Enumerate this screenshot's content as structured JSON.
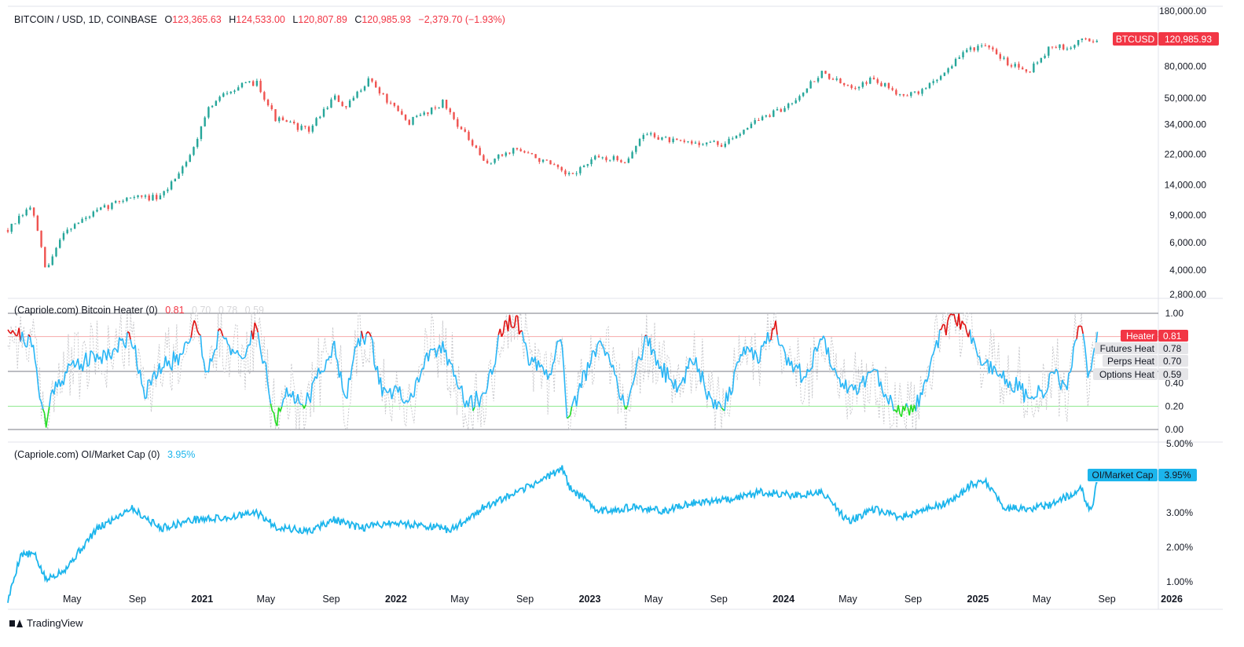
{
  "app": {
    "brand": "TradingView",
    "icon": "tradingview-logo-icon"
  },
  "main_pane": {
    "title_parts": {
      "symbol": "BITCOIN / USD, 1D, COINBASE",
      "open_label": "O",
      "open": "123,365.63",
      "high_label": "H",
      "high": "124,533.00",
      "low_label": "L",
      "low": "120,807.89",
      "close_label": "C",
      "close": "120,985.93",
      "change": "−2,379.70 (−1.93%)"
    },
    "price_tag": {
      "symbol": "BTCUSD",
      "value": "120,985.93"
    }
  },
  "heater_pane": {
    "title": "(Capriole.com) Bitcoin Heater (0)",
    "values": [
      "0.81",
      "0.70",
      "0.78",
      "0.59"
    ],
    "legend": [
      {
        "label": "Heater",
        "value": "0.81"
      },
      {
        "label": "Futures Heat",
        "value": "0.78"
      },
      {
        "label": "Perps Heat",
        "value": "0.70"
      },
      {
        "label": "Options Heat",
        "value": "0.59"
      }
    ]
  },
  "oi_pane": {
    "title": "(Capriole.com) OI/Market Cap (0)",
    "value": "3.95%",
    "price_tag": {
      "label": "OI/Market Cap",
      "value": "3.95%"
    }
  },
  "colors": {
    "up": "#26a69a",
    "down": "#ef5350",
    "heater_line": "#29b6f6",
    "hot": "#e01212",
    "cold": "#22dd22",
    "ghost": "#c8c8cc",
    "oi_line": "#1cb5ec",
    "tag_red": "#f23645"
  },
  "chart_data": [
    {
      "type": "candlestick",
      "title": "BITCOIN / USD, 1D, COINBASE",
      "scale": "log",
      "ylim": [
        2800,
        180000
      ],
      "y_ticks": [
        "180,000.00",
        "80,000.00",
        "50,000.00",
        "34,000.00",
        "22,000.00",
        "14,000.00",
        "9,000.00",
        "6,000.00",
        "4,000.00",
        "2,800.00"
      ],
      "y_tick_values": [
        180000,
        80000,
        50000,
        34000,
        22000,
        14000,
        9000,
        6000,
        4000,
        2800
      ],
      "x_ticks": [
        "May",
        "Sep",
        "2021",
        "May",
        "Sep",
        "2022",
        "May",
        "Sep",
        "2023",
        "May",
        "Sep",
        "2024",
        "May",
        "Sep",
        "2025",
        "May",
        "Sep",
        "2026"
      ],
      "x_tick_dates": [
        "2020-05-01",
        "2020-09-01",
        "2021-01-01",
        "2021-05-01",
        "2021-09-01",
        "2022-01-01",
        "2022-05-01",
        "2022-09-01",
        "2023-01-01",
        "2023-05-01",
        "2023-09-01",
        "2024-01-01",
        "2024-05-01",
        "2024-09-01",
        "2025-01-01",
        "2025-05-01",
        "2025-09-01",
        "2026-01-01"
      ],
      "x_range": [
        "2020-01-01",
        "2026-02-01"
      ],
      "series": [
        {
          "x": [
            "2020-01-01",
            "2020-02-15",
            "2020-03-13",
            "2020-04-15",
            "2020-06-15",
            "2020-08-15",
            "2020-10-15",
            "2020-12-15",
            "2021-01-08",
            "2021-02-21",
            "2021-04-14",
            "2021-05-19",
            "2021-07-20",
            "2021-09-06",
            "2021-09-29",
            "2021-11-10",
            "2021-12-20",
            "2022-01-24",
            "2022-03-30",
            "2022-05-12",
            "2022-06-18",
            "2022-08-14",
            "2022-10-15",
            "2022-11-21",
            "2023-01-15",
            "2023-03-10",
            "2023-04-15",
            "2023-06-15",
            "2023-08-17",
            "2023-09-11",
            "2023-11-01",
            "2023-12-31",
            "2024-03-14",
            "2024-05-01",
            "2024-06-15",
            "2024-08-05",
            "2024-09-06",
            "2024-10-15",
            "2024-12-17",
            "2025-01-20",
            "2025-02-28",
            "2025-04-08",
            "2025-05-22",
            "2025-06-22",
            "2025-07-14",
            "2025-08-02",
            "2025-08-14"
          ],
          "close": [
            7200,
            10300,
            3900,
            7100,
            9400,
            11800,
            11500,
            23500,
            41000,
            57000,
            63500,
            37000,
            31000,
            51000,
            43000,
            67000,
            46000,
            35000,
            47000,
            29000,
            19000,
            24000,
            19100,
            15800,
            21000,
            20000,
            30000,
            26000,
            26000,
            25000,
            35000,
            42500,
            73000,
            58000,
            66000,
            54000,
            53000,
            66000,
            106000,
            104000,
            84000,
            76000,
            110000,
            100000,
            123000,
            113000,
            120986
          ]
        }
      ]
    },
    {
      "type": "line",
      "title": "(Capriole.com) Bitcoin Heater (0)",
      "ylim": [
        0,
        1
      ],
      "y_ticks": [
        "1.00",
        "0.40",
        "0.20",
        "0.00"
      ],
      "y_tick_values": [
        1.0,
        0.4,
        0.2,
        0.0
      ],
      "reference_levels": [
        1.0,
        0.8,
        0.5,
        0.2,
        0.0
      ],
      "series": [
        {
          "name": "Heater",
          "x": [
            "2020-01-01",
            "2020-01-20",
            "2020-02-15",
            "2020-03-13",
            "2020-03-25",
            "2020-05-01",
            "2020-06-15",
            "2020-07-20",
            "2020-08-20",
            "2020-09-15",
            "2020-10-20",
            "2020-11-20",
            "2020-12-20",
            "2021-01-10",
            "2021-02-05",
            "2021-03-15",
            "2021-04-14",
            "2021-05-19",
            "2021-06-10",
            "2021-07-20",
            "2021-08-15",
            "2021-09-06",
            "2021-09-29",
            "2021-10-20",
            "2021-11-10",
            "2021-12-05",
            "2022-01-10",
            "2022-01-24",
            "2022-02-20",
            "2022-03-30",
            "2022-04-25",
            "2022-05-12",
            "2022-06-18",
            "2022-07-20",
            "2022-08-14",
            "2022-09-10",
            "2022-10-15",
            "2022-11-09",
            "2022-11-21",
            "2022-12-20",
            "2023-01-20",
            "2023-02-15",
            "2023-03-10",
            "2023-04-15",
            "2023-05-20",
            "2023-06-20",
            "2023-07-15",
            "2023-08-17",
            "2023-09-11",
            "2023-10-23",
            "2023-11-15",
            "2023-12-15",
            "2024-01-10",
            "2024-02-10",
            "2024-03-14",
            "2024-04-20",
            "2024-05-20",
            "2024-06-15",
            "2024-07-10",
            "2024-08-05",
            "2024-09-06",
            "2024-10-15",
            "2024-11-15",
            "2024-12-05",
            "2025-01-10",
            "2025-02-10",
            "2025-03-10",
            "2025-04-08",
            "2025-05-10",
            "2025-05-22",
            "2025-06-15",
            "2025-07-14",
            "2025-07-25",
            "2025-08-02",
            "2025-08-14"
          ],
          "y": [
            0.9,
            0.82,
            0.74,
            0.02,
            0.35,
            0.55,
            0.62,
            0.68,
            0.82,
            0.32,
            0.55,
            0.62,
            0.95,
            0.48,
            0.88,
            0.55,
            0.92,
            0.05,
            0.3,
            0.25,
            0.55,
            0.7,
            0.3,
            0.72,
            0.85,
            0.35,
            0.3,
            0.2,
            0.55,
            0.72,
            0.45,
            0.2,
            0.3,
            0.88,
            0.95,
            0.6,
            0.42,
            0.86,
            0.02,
            0.45,
            0.75,
            0.5,
            0.18,
            0.78,
            0.5,
            0.35,
            0.65,
            0.25,
            0.2,
            0.72,
            0.62,
            0.9,
            0.58,
            0.45,
            0.78,
            0.4,
            0.32,
            0.55,
            0.3,
            0.18,
            0.18,
            0.75,
            0.95,
            0.9,
            0.6,
            0.45,
            0.4,
            0.25,
            0.35,
            0.48,
            0.35,
            0.95,
            0.5,
            0.45,
            0.81
          ]
        }
      ]
    },
    {
      "type": "line",
      "title": "(Capriole.com) OI/Market Cap (0)",
      "ylim": [
        0,
        5
      ],
      "y_ticks": [
        "5.00%",
        "3.00%",
        "2.00%",
        "1.00%"
      ],
      "y_tick_values": [
        5.0,
        3.0,
        2.0,
        1.0
      ],
      "series": [
        {
          "name": "OI/Market Cap",
          "x": [
            "2020-01-01",
            "2020-01-25",
            "2020-02-20",
            "2020-03-13",
            "2020-04-20",
            "2020-06-15",
            "2020-08-20",
            "2020-10-15",
            "2020-12-15",
            "2021-02-15",
            "2021-04-14",
            "2021-05-19",
            "2021-07-20",
            "2021-09-06",
            "2021-10-25",
            "2021-12-15",
            "2022-02-15",
            "2022-04-15",
            "2022-06-15",
            "2022-08-15",
            "2022-10-20",
            "2022-11-10",
            "2022-11-25",
            "2023-01-20",
            "2023-03-20",
            "2023-05-20",
            "2023-07-20",
            "2023-09-20",
            "2023-11-20",
            "2024-01-20",
            "2024-03-14",
            "2024-05-01",
            "2024-06-20",
            "2024-08-05",
            "2024-09-20",
            "2024-11-15",
            "2024-12-17",
            "2025-01-15",
            "2025-02-20",
            "2025-04-08",
            "2025-05-22",
            "2025-06-22",
            "2025-07-14",
            "2025-08-02",
            "2025-08-14"
          ],
          "y": [
            0.45,
            1.8,
            1.8,
            1.05,
            1.4,
            2.5,
            3.15,
            2.55,
            2.8,
            2.85,
            3.0,
            2.6,
            2.45,
            2.8,
            2.55,
            2.7,
            2.65,
            2.5,
            3.15,
            3.55,
            4.1,
            4.3,
            3.7,
            3.05,
            3.15,
            3.05,
            3.3,
            3.4,
            3.6,
            3.5,
            3.6,
            2.75,
            3.1,
            2.85,
            3.05,
            3.35,
            3.8,
            3.9,
            3.15,
            3.1,
            3.25,
            3.5,
            3.7,
            3.0,
            3.95
          ]
        }
      ]
    }
  ]
}
